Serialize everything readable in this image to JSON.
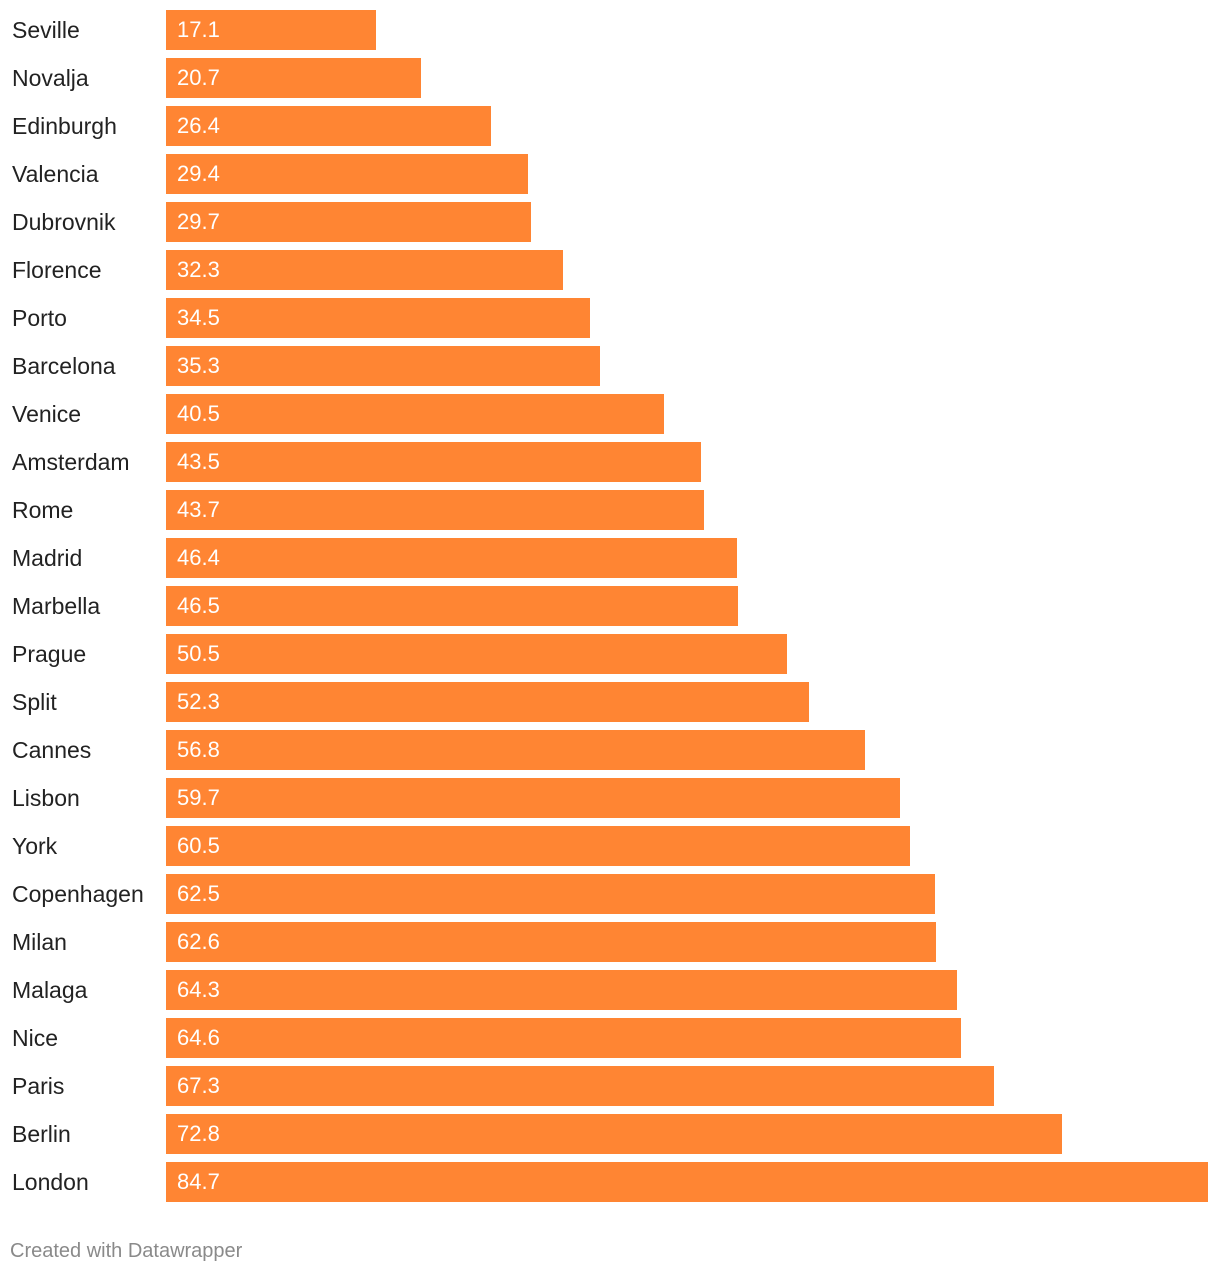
{
  "chart_data": {
    "type": "bar",
    "orientation": "horizontal",
    "categories": [
      "Seville",
      "Novalja",
      "Edinburgh",
      "Valencia",
      "Dubrovnik",
      "Florence",
      "Porto",
      "Barcelona",
      "Venice",
      "Amsterdam",
      "Rome",
      "Madrid",
      "Marbella",
      "Prague",
      "Split",
      "Cannes",
      "Lisbon",
      "York",
      "Copenhagen",
      "Milan",
      "Malaga",
      "Nice",
      "Paris",
      "Berlin",
      "London"
    ],
    "values": [
      17.1,
      20.7,
      26.4,
      29.4,
      29.7,
      32.3,
      34.5,
      35.3,
      40.5,
      43.5,
      43.7,
      46.4,
      46.5,
      50.5,
      52.3,
      56.8,
      59.7,
      60.5,
      62.5,
      62.6,
      64.3,
      64.6,
      67.3,
      72.8,
      84.7
    ],
    "value_labels": [
      "17.1",
      "20.7",
      "26.4",
      "29.4",
      "29.7",
      "32.3",
      "34.5",
      "35.3",
      "40.5",
      "43.5",
      "43.7",
      "46.4",
      "46.5",
      "50.5",
      "52.3",
      "56.8",
      "59.7",
      "60.5",
      "62.5",
      "62.6",
      "64.3",
      "64.6",
      "67.3",
      "72.8",
      "84.7"
    ],
    "xlim": [
      0,
      84.7
    ],
    "grid": false,
    "bar_color": "#ff8533",
    "label_color": "#ffffff"
  },
  "footer": {
    "credit": "Created with Datawrapper"
  }
}
